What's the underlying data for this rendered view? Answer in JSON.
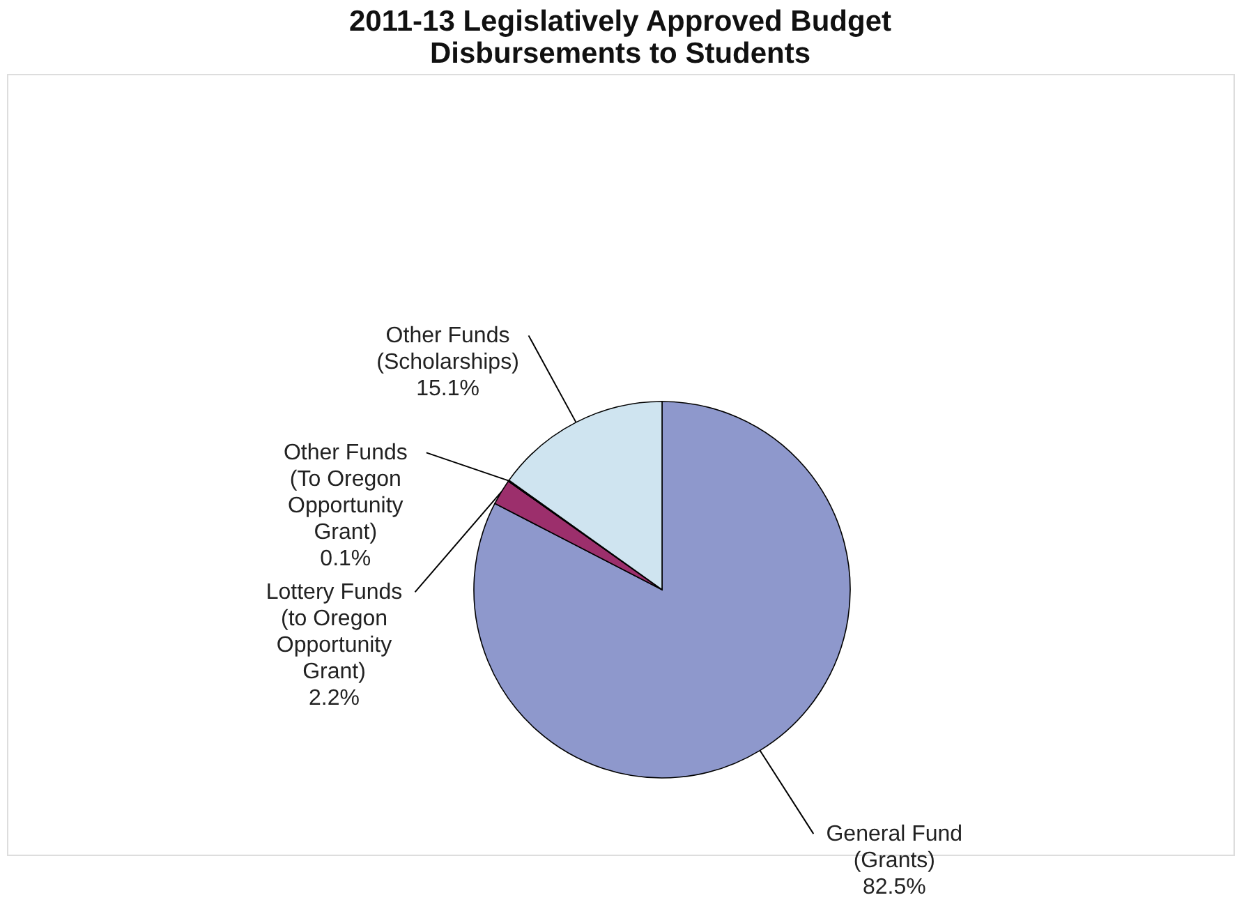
{
  "chart_data": {
    "type": "pie",
    "title": "2011-13 Legislatively Approved Budget Disbursements to Students",
    "categories": [
      "General Fund (Grants)",
      "Lottery Funds (to Oregon Opportunity Grant)",
      "Other Funds (To Oregon Opportunity Grant)",
      "Other Funds (Scholarships)"
    ],
    "values": [
      82.5,
      2.2,
      0.1,
      15.1
    ],
    "value_labels": [
      "82.5%",
      "2.2%",
      "0.1%",
      "15.1%"
    ],
    "colors": [
      "#8e98cc",
      "#9c2f6c",
      "#2b2b50",
      "#cfe4f0"
    ],
    "legend": false
  }
}
